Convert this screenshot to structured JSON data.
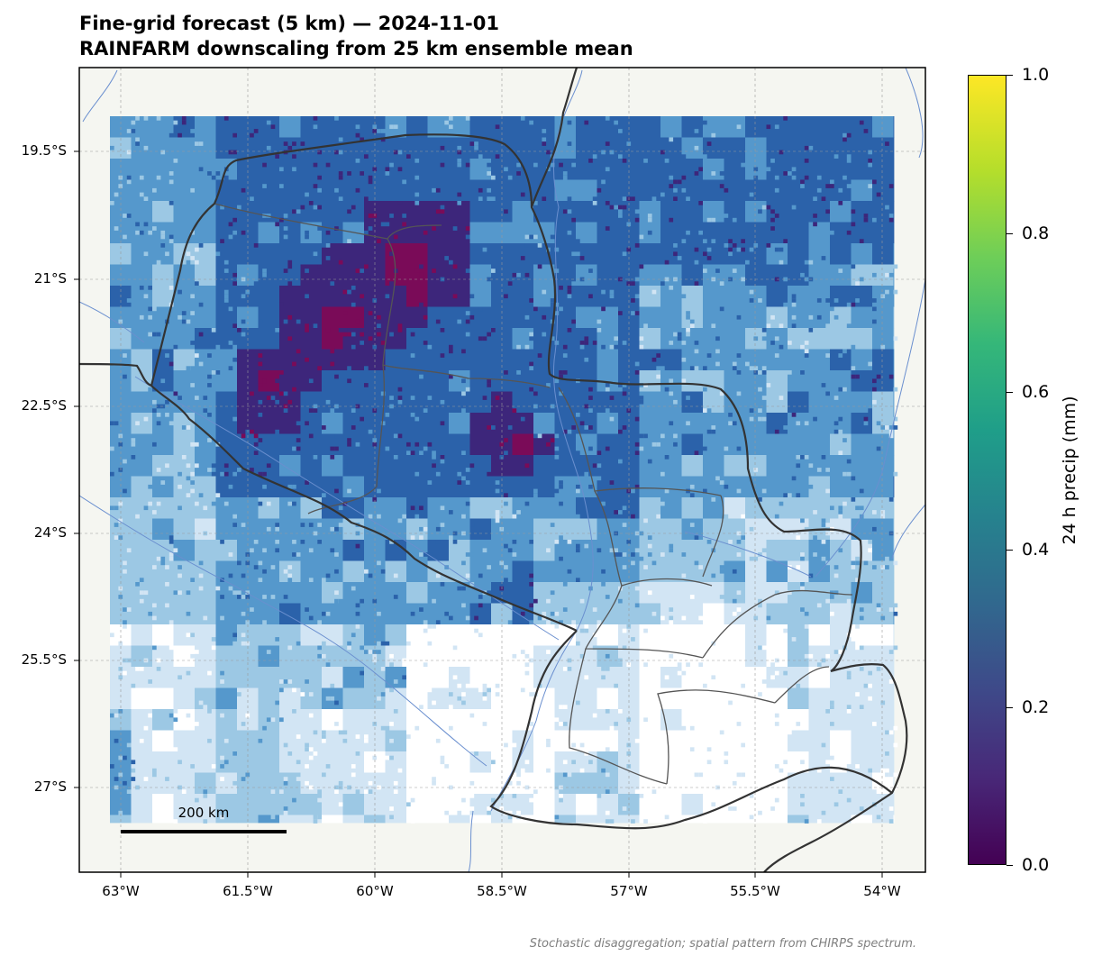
{
  "title": {
    "line1": "Fine-grid forecast (5 km) — 2024-11-01",
    "line2": "RAINFARM downscaling from 25 km ensemble mean"
  },
  "map": {
    "lon_range": [
      -63.5,
      -53.5
    ],
    "lat_range": [
      -28.0,
      -18.6
    ],
    "lat_ticks": [
      "19.5°S",
      "21°S",
      "22.5°S",
      "24°S",
      "25.5°S",
      "27°S"
    ],
    "lon_ticks": [
      "63°W",
      "61.5°W",
      "60°W",
      "58.5°W",
      "57°W",
      "55.5°W",
      "54°W"
    ],
    "gridlines": true,
    "land_color": "#f5f6f1",
    "river_color": "#6a8fcf",
    "scale_bar_label": "200 km"
  },
  "colorbar": {
    "label": "24 h precip (mm)",
    "ticks": [
      "0.0",
      "0.2",
      "0.4",
      "0.6",
      "0.8",
      "1.0"
    ],
    "colormap": "viridis"
  },
  "field_colors": [
    "#ffffff",
    "#d2e5f4",
    "#9cc8e4",
    "#5598cc",
    "#2b62aa",
    "#3d267b",
    "#7a0b58"
  ],
  "footnote": "Stochastic disaggregation; spatial pattern from CHIRPS spectrum."
}
